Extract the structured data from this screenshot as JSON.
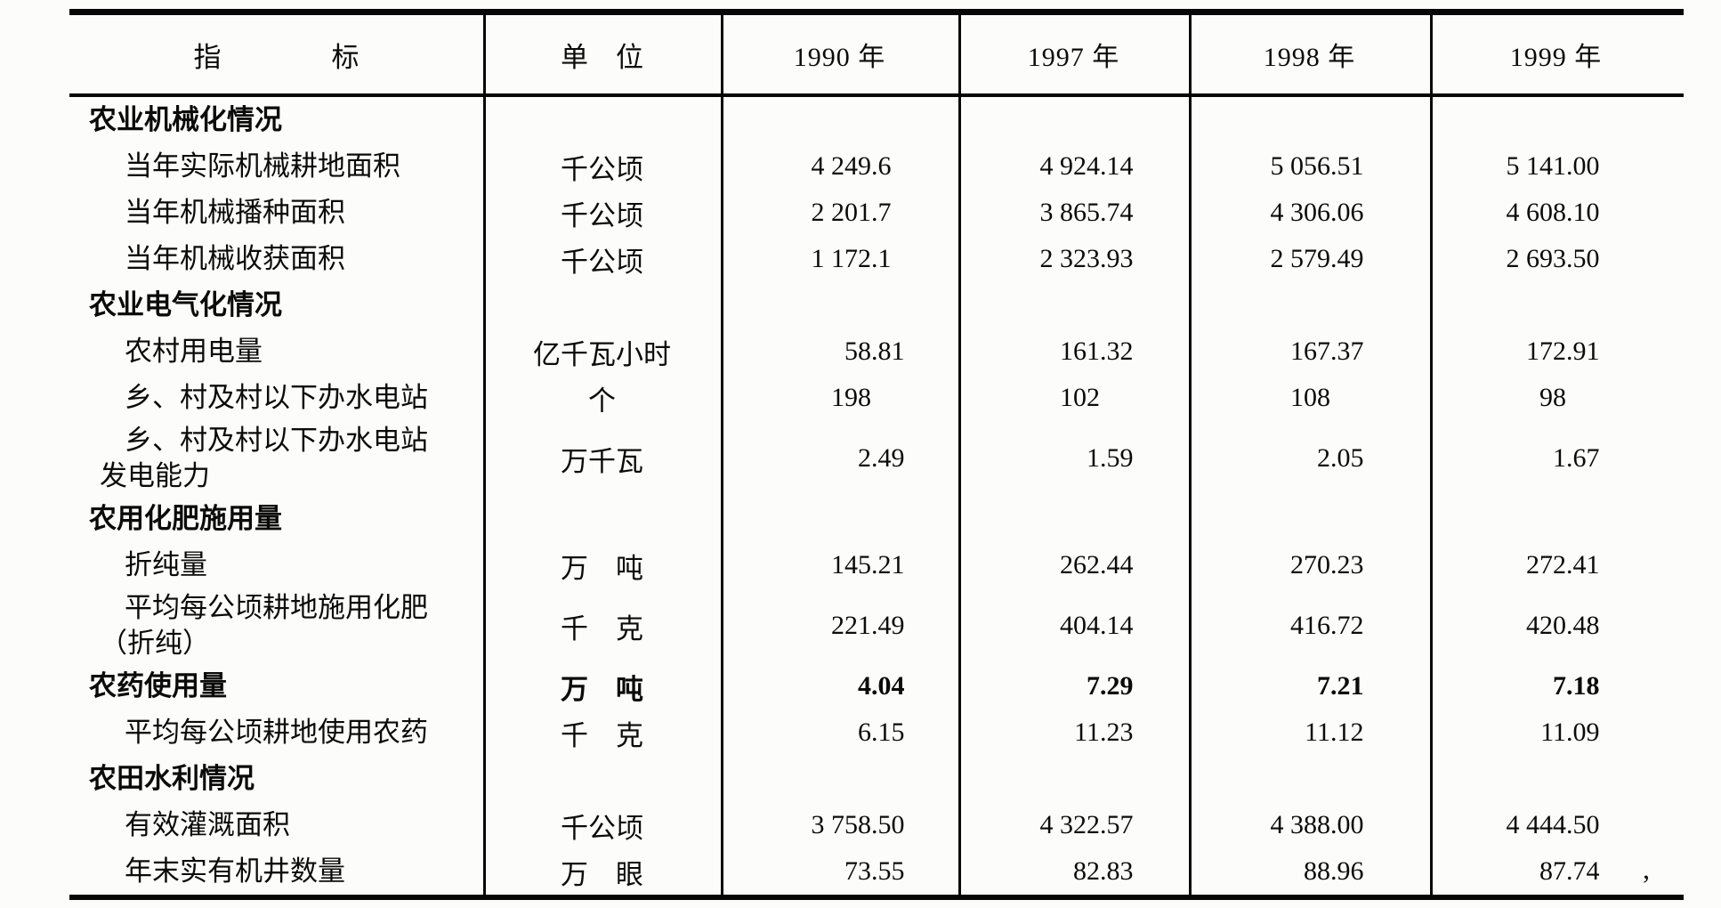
{
  "table": {
    "header": {
      "indicator": "指　　　　标",
      "unit": "单　位",
      "years": [
        "1990 年",
        "1997 年",
        "1998 年",
        "1999 年"
      ]
    },
    "rows": [
      {
        "type": "section",
        "label": "农业机械化情况"
      },
      {
        "type": "item",
        "label": "当年实际机械耕地面积",
        "unit": "千公顷",
        "values": [
          "4 249.6",
          "4 924.14",
          "5 056.51",
          "5 141.00"
        ]
      },
      {
        "type": "item",
        "label": "当年机械播种面积",
        "unit": "千公顷",
        "values": [
          "2 201.7",
          "3 865.74",
          "4 306.06",
          "4 608.10"
        ]
      },
      {
        "type": "item",
        "label": "当年机械收获面积",
        "unit": "千公顷",
        "values": [
          "1 172.1",
          "2 323.93",
          "2 579.49",
          "2 693.50"
        ]
      },
      {
        "type": "section",
        "label": "农业电气化情况"
      },
      {
        "type": "item",
        "label": "农村用电量",
        "unit": "亿千瓦小时",
        "values": [
          "58.81",
          "161.32",
          "167.37",
          "172.91"
        ]
      },
      {
        "type": "item",
        "label": "乡、村及村以下办水电站",
        "unit": "个",
        "values": [
          "198",
          "102",
          "108",
          "98"
        ]
      },
      {
        "type": "item",
        "label": "乡、村及村以下办水电站",
        "label2": "发电能力",
        "unit": "万千瓦",
        "values": [
          "2.49",
          "1.59",
          "2.05",
          "1.67"
        ]
      },
      {
        "type": "section",
        "label": "农用化肥施用量"
      },
      {
        "type": "item",
        "label": "折纯量",
        "unit": "万　吨",
        "values": [
          "145.21",
          "262.44",
          "270.23",
          "272.41"
        ]
      },
      {
        "type": "item",
        "label": "平均每公顷耕地施用化肥",
        "label2": "（折纯）",
        "unit": "千　克",
        "values": [
          "221.49",
          "404.14",
          "416.72",
          "420.48"
        ]
      },
      {
        "type": "section-data",
        "label": "农药使用量",
        "unit": "万　吨",
        "values": [
          "4.04",
          "7.29",
          "7.21",
          "7.18"
        ]
      },
      {
        "type": "item",
        "label": "平均每公顷耕地使用农药",
        "unit": "千　克",
        "values": [
          "6.15",
          "11.23",
          "11.12",
          "11.09"
        ]
      },
      {
        "type": "section",
        "label": "农田水利情况"
      },
      {
        "type": "item",
        "label": "有效灌溉面积",
        "unit": "千公顷",
        "values": [
          "3 758.50",
          "4 322.57",
          "4 388.00",
          "4 444.50"
        ]
      },
      {
        "type": "item",
        "label": "年末实有机井数量",
        "unit": "万　眼",
        "values": [
          "73.55",
          "82.83",
          "88.96",
          "87.74"
        ]
      }
    ],
    "year_keys": [
      "1990",
      "1997",
      "1998",
      "1999"
    ],
    "scan_artifact": ","
  }
}
